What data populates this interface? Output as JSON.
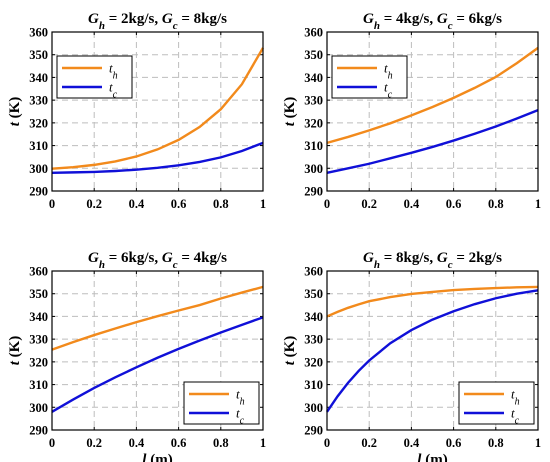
{
  "chart_data": [
    {
      "type": "line",
      "title": "G_h = 2kg/s, G_c = 8kg/s",
      "title_parts": {
        "g1": "G",
        "s1": "h",
        "v1": " = 2kg/s, ",
        "g2": "G",
        "s2": "c",
        "v2": " = 8kg/s"
      },
      "xlabel": "",
      "ylabel": "t (K)",
      "ylabel_parts": {
        "var": "t",
        "unit": " (K)"
      },
      "xlim": [
        0,
        1
      ],
      "ylim": [
        290,
        360
      ],
      "xticks": [
        0,
        0.2,
        0.4,
        0.6,
        0.8,
        1
      ],
      "xtick_labels": [
        "0",
        "0.2",
        "0.4",
        "0.6",
        "0.8",
        "1"
      ],
      "yticks": [
        290,
        300,
        310,
        320,
        330,
        340,
        350,
        360
      ],
      "ytick_labels": [
        "290",
        "300",
        "310",
        "320",
        "330",
        "340",
        "350",
        "360"
      ],
      "grid": true,
      "legend": "top-left",
      "x": [
        0,
        0.1,
        0.2,
        0.3,
        0.4,
        0.5,
        0.6,
        0.7,
        0.8,
        0.9,
        1.0
      ],
      "series": [
        {
          "name": "t_h",
          "sym": "t",
          "sub": "h",
          "color": "#f28a1c",
          "values": [
            299.8,
            300.5,
            301.5,
            303.0,
            305.2,
            308.3,
            312.5,
            318.2,
            326.0,
            337.0,
            353.0
          ]
        },
        {
          "name": "t_c",
          "sym": "t",
          "sub": "c",
          "color": "#1010d8",
          "values": [
            298.0,
            298.2,
            298.4,
            298.8,
            299.4,
            300.2,
            301.3,
            302.8,
            304.8,
            307.6,
            311.2
          ]
        }
      ]
    },
    {
      "type": "line",
      "title": "G_h = 4kg/s, G_c = 6kg/s",
      "title_parts": {
        "g1": "G",
        "s1": "h",
        "v1": " = 4kg/s, ",
        "g2": "G",
        "s2": "c",
        "v2": " = 6kg/s"
      },
      "xlabel": "",
      "ylabel": "t (K)",
      "ylabel_parts": {
        "var": "t",
        "unit": " (K)"
      },
      "xlim": [
        0,
        1
      ],
      "ylim": [
        290,
        360
      ],
      "xticks": [
        0,
        0.2,
        0.4,
        0.6,
        0.8,
        1
      ],
      "xtick_labels": [
        "0",
        "0.2",
        "0.4",
        "0.6",
        "0.8",
        "1"
      ],
      "yticks": [
        290,
        300,
        310,
        320,
        330,
        340,
        350,
        360
      ],
      "ytick_labels": [
        "290",
        "300",
        "310",
        "320",
        "330",
        "340",
        "350",
        "360"
      ],
      "grid": true,
      "legend": "top-left",
      "x": [
        0,
        0.1,
        0.2,
        0.3,
        0.4,
        0.5,
        0.6,
        0.7,
        0.8,
        0.9,
        1.0
      ],
      "series": [
        {
          "name": "t_h",
          "sym": "t",
          "sub": "h",
          "color": "#f28a1c",
          "values": [
            311.2,
            313.8,
            316.7,
            319.8,
            323.3,
            327.0,
            331.0,
            335.4,
            340.2,
            346.3,
            353.0
          ]
        },
        {
          "name": "t_c",
          "sym": "t",
          "sub": "c",
          "color": "#1010d8",
          "values": [
            298.0,
            300.0,
            302.0,
            304.4,
            306.8,
            309.4,
            312.2,
            315.2,
            318.4,
            321.9,
            325.6
          ]
        }
      ]
    },
    {
      "type": "line",
      "title": "G_h = 6kg/s, G_c = 4kg/s",
      "title_parts": {
        "g1": "G",
        "s1": "h",
        "v1": " = 6kg/s, ",
        "g2": "G",
        "s2": "c",
        "v2": " = 4kg/s"
      },
      "xlabel": "l (m)",
      "ylabel": "t (K)",
      "xlabel_parts": {
        "var": "l",
        "unit": " (m)"
      },
      "ylabel_parts": {
        "var": "t",
        "unit": " (K)"
      },
      "xlim": [
        0,
        1
      ],
      "ylim": [
        290,
        360
      ],
      "xticks": [
        0,
        0.2,
        0.4,
        0.6,
        0.8,
        1
      ],
      "xtick_labels": [
        "0",
        "0.2",
        "0.4",
        "0.6",
        "0.8",
        "1"
      ],
      "yticks": [
        290,
        300,
        310,
        320,
        330,
        340,
        350,
        360
      ],
      "ytick_labels": [
        "290",
        "300",
        "310",
        "320",
        "330",
        "340",
        "350",
        "360"
      ],
      "grid": true,
      "legend": "bottom-right",
      "x": [
        0,
        0.1,
        0.2,
        0.3,
        0.4,
        0.5,
        0.6,
        0.7,
        0.8,
        0.9,
        1.0
      ],
      "series": [
        {
          "name": "t_h",
          "sym": "t",
          "sub": "h",
          "color": "#f28a1c",
          "values": [
            325.4,
            328.7,
            331.8,
            334.7,
            337.5,
            340.1,
            342.6,
            345.0,
            347.9,
            350.5,
            353.0
          ]
        },
        {
          "name": "t_c",
          "sym": "t",
          "sub": "c",
          "color": "#1010d8",
          "values": [
            298.0,
            303.4,
            308.5,
            313.2,
            317.6,
            321.8,
            325.7,
            329.4,
            332.9,
            336.3,
            339.6
          ]
        }
      ]
    },
    {
      "type": "line",
      "title": "G_h = 8kg/s, G_c = 2kg/s",
      "title_parts": {
        "g1": "G",
        "s1": "h",
        "v1": " = 8kg/s, ",
        "g2": "G",
        "s2": "c",
        "v2": " = 2kg/s"
      },
      "xlabel": "l (m)",
      "ylabel": "t (K)",
      "xlabel_parts": {
        "var": "l",
        "unit": " (m)"
      },
      "ylabel_parts": {
        "var": "t",
        "unit": " (K)"
      },
      "xlim": [
        0,
        1
      ],
      "ylim": [
        290,
        360
      ],
      "xticks": [
        0,
        0.2,
        0.4,
        0.6,
        0.8,
        1
      ],
      "xtick_labels": [
        "0",
        "0.2",
        "0.4",
        "0.6",
        "0.8",
        "1"
      ],
      "yticks": [
        290,
        300,
        310,
        320,
        330,
        340,
        350,
        360
      ],
      "ytick_labels": [
        "290",
        "300",
        "310",
        "320",
        "330",
        "340",
        "350",
        "360"
      ],
      "grid": true,
      "legend": "bottom-right",
      "x": [
        0,
        0.05,
        0.1,
        0.15,
        0.2,
        0.3,
        0.4,
        0.5,
        0.6,
        0.7,
        0.8,
        0.9,
        1.0
      ],
      "series": [
        {
          "name": "t_h",
          "sym": "t",
          "sub": "h",
          "color": "#f28a1c",
          "values": [
            340.0,
            342.0,
            343.8,
            345.3,
            346.7,
            348.5,
            349.9,
            350.8,
            351.6,
            352.1,
            352.5,
            352.8,
            353.0
          ]
        },
        {
          "name": "t_c",
          "sym": "t",
          "sub": "c",
          "color": "#1010d8",
          "values": [
            298.0,
            304.8,
            310.8,
            316.0,
            320.6,
            328.2,
            334.0,
            338.6,
            342.3,
            345.4,
            348.0,
            350.0,
            351.5
          ]
        }
      ]
    }
  ]
}
